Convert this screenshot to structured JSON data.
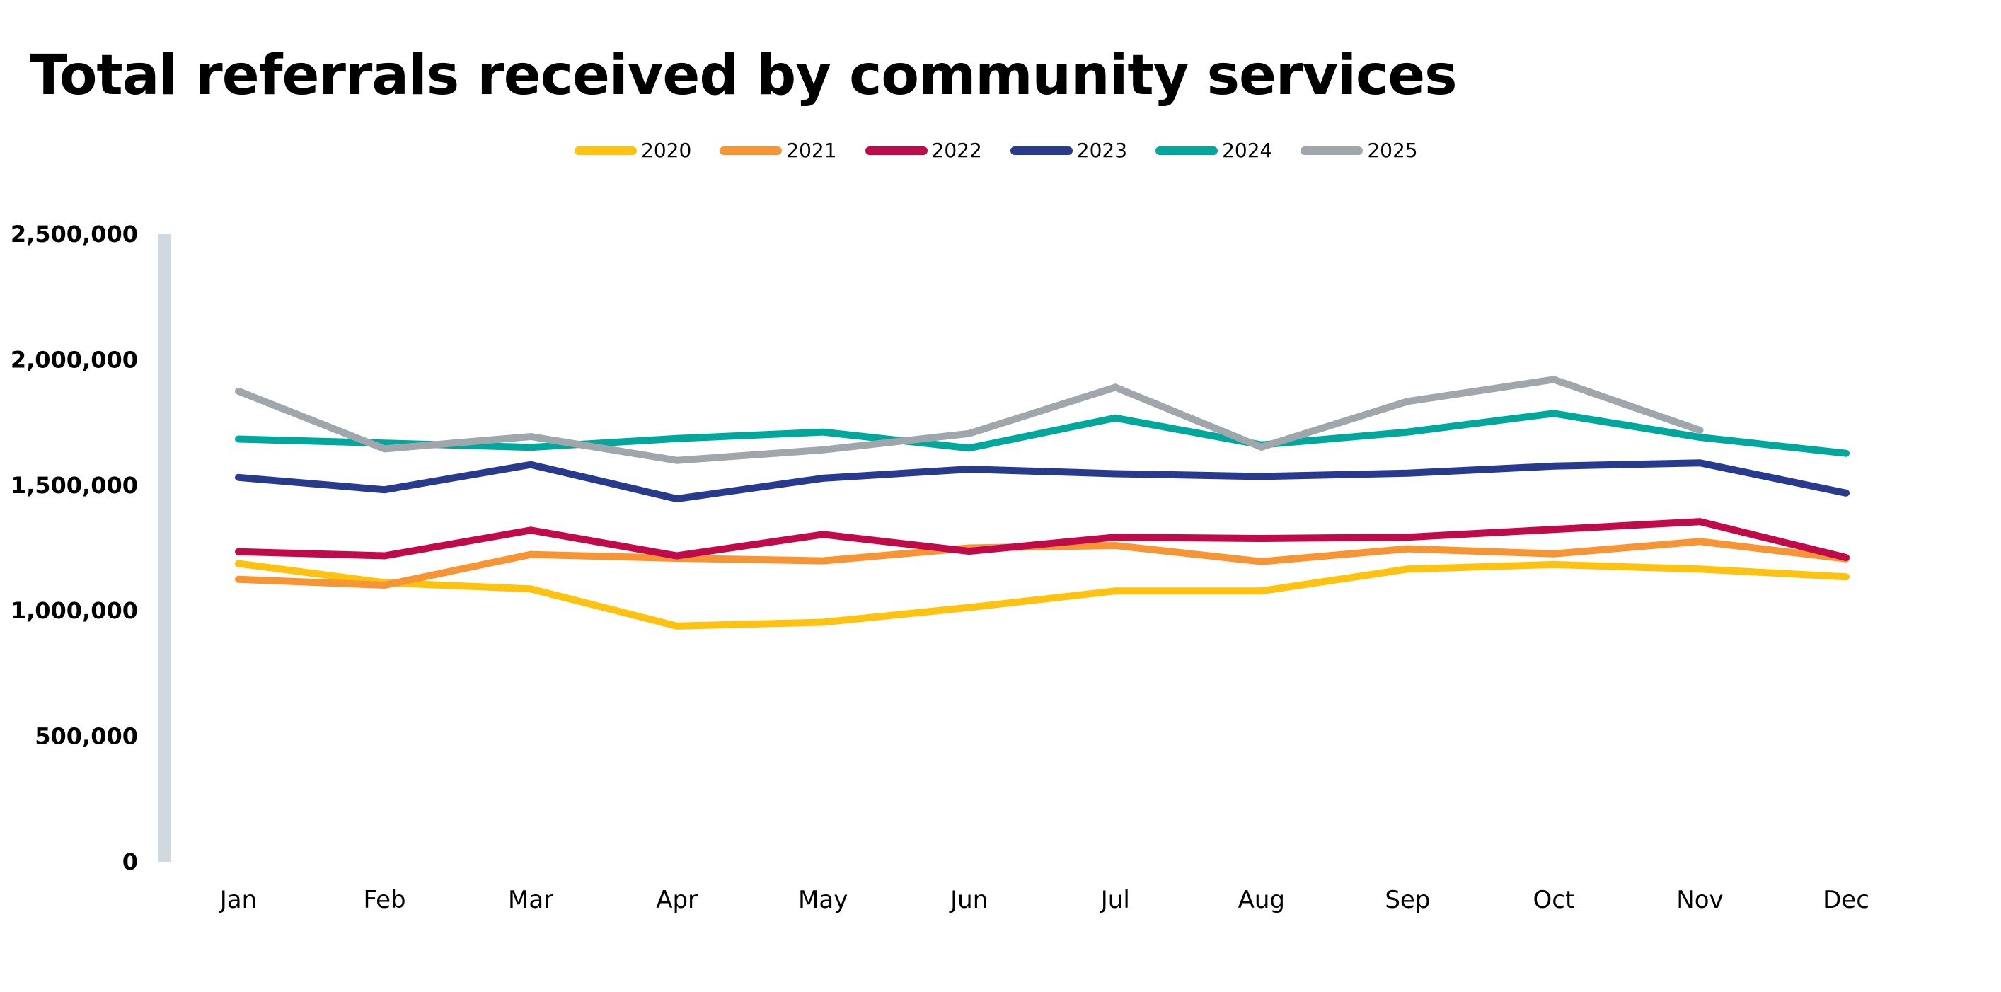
{
  "chart_data": {
    "type": "line",
    "title": "Total referrals received by community services",
    "xlabel": "",
    "ylabel": "",
    "categories": [
      "Jan",
      "Feb",
      "Mar",
      "Apr",
      "May",
      "Jun",
      "Jul",
      "Aug",
      "Sep",
      "Oct",
      "Nov",
      "Dec"
    ],
    "ylim": [
      0,
      2500000
    ],
    "yticks": [
      0,
      500000,
      1000000,
      1500000,
      2000000,
      2500000
    ],
    "ytick_labels": [
      "0",
      "500,000",
      "1,000,000",
      "1,500,000",
      "2,000,000",
      "2,500,000"
    ],
    "grid": false,
    "legend_position": "top-center",
    "series": [
      {
        "name": "2020",
        "color": "#FFC20E",
        "values": [
          1188000,
          1112000,
          1087000,
          939000,
          954000,
          1013000,
          1079000,
          1079000,
          1166000,
          1184000,
          1166000,
          1135000
        ]
      },
      {
        "name": "2021",
        "color": "#F79433",
        "values": [
          1125000,
          1102000,
          1224000,
          1209000,
          1199000,
          1250000,
          1260000,
          1196000,
          1247000,
          1227000,
          1276000,
          1207000
        ]
      },
      {
        "name": "2022",
        "color": "#C00A4A",
        "values": [
          1235000,
          1219000,
          1321000,
          1219000,
          1304000,
          1237000,
          1293000,
          1288000,
          1293000,
          1324000,
          1355000,
          1212000
        ]
      },
      {
        "name": "2023",
        "color": "#283A8E",
        "values": [
          1531000,
          1482000,
          1582000,
          1446000,
          1528000,
          1564000,
          1546000,
          1535000,
          1548000,
          1576000,
          1589000,
          1469000
        ]
      },
      {
        "name": "2024",
        "color": "#00A79D",
        "values": [
          1684000,
          1668000,
          1651000,
          1686000,
          1712000,
          1648000,
          1768000,
          1661000,
          1712000,
          1786000,
          1691000,
          1627000
        ]
      },
      {
        "name": "2025",
        "color": "#A0A7AC",
        "values": [
          1875000,
          1645000,
          1694000,
          1599000,
          1641000,
          1706000,
          1890000,
          1652000,
          1834000,
          1921000,
          1719000,
          null
        ]
      }
    ]
  }
}
